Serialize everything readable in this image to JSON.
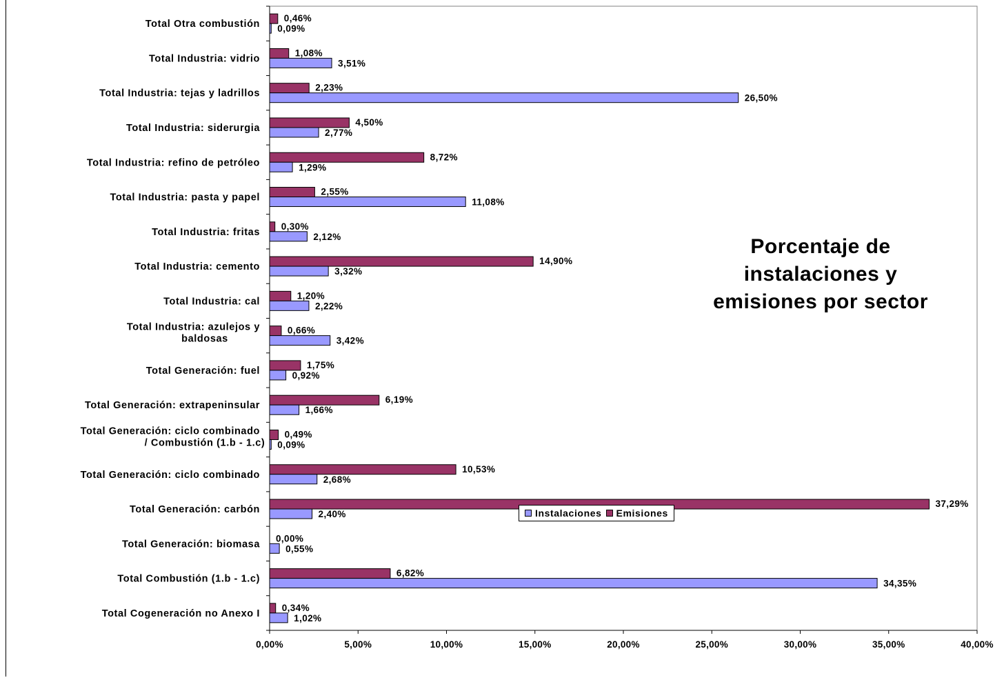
{
  "chart_data": {
    "type": "bar",
    "orientation": "horizontal",
    "title": "Porcentaje de instalaciones y emisiones por sector",
    "categories": [
      "Total Otra combustión",
      "Total Industria: vidrio",
      "Total Industria: tejas y ladrillos",
      "Total Industria: siderurgia",
      "Total Industria: refino de petróleo",
      "Total Industria: pasta y papel",
      "Total Industria: fritas",
      "Total Industria: cemento",
      "Total Industria: cal",
      "Total Industria: azulejos y baldosas",
      "Total Generación: fuel",
      "Total Generación: extrapeninsular",
      "Total Generación: ciclo combinado / Combustión (1.b - 1.c)",
      "Total Generación: ciclo combinado",
      "Total Generación: carbón",
      "Total Generación: biomasa",
      "Total Combustión (1.b - 1.c)",
      "Total Cogeneración no Anexo I"
    ],
    "series": [
      {
        "name": "Emisiones",
        "color": "#993366",
        "values": [
          0.46,
          1.08,
          2.23,
          4.5,
          8.72,
          2.55,
          0.3,
          14.9,
          1.2,
          0.66,
          1.75,
          6.19,
          0.49,
          10.53,
          37.29,
          0.0,
          6.82,
          0.34
        ],
        "labels": [
          "0,46%",
          "1,08%",
          "2,23%",
          "4,50%",
          "8,72%",
          "2,55%",
          "0,30%",
          "14,90%",
          "1,20%",
          "0,66%",
          "1,75%",
          "6,19%",
          "0,49%",
          "10,53%",
          "37,29%",
          "0,00%",
          "6,82%",
          "0,34%"
        ]
      },
      {
        "name": "Instalaciones",
        "color": "#9999ff",
        "values": [
          0.09,
          3.51,
          26.5,
          2.77,
          1.29,
          11.08,
          2.12,
          3.32,
          2.22,
          3.42,
          0.92,
          1.66,
          0.09,
          2.68,
          2.4,
          0.55,
          34.35,
          1.02
        ],
        "labels": [
          "0,09%",
          "3,51%",
          "26,50%",
          "2,77%",
          "1,29%",
          "11,08%",
          "2,12%",
          "3,32%",
          "2,22%",
          "3,42%",
          "0,92%",
          "1,66%",
          "0,09%",
          "2,68%",
          "2,40%",
          "0,55%",
          "34,35%",
          "1,02%"
        ]
      }
    ],
    "xlim": [
      0,
      40
    ],
    "xticks": [
      "0,00%",
      "5,00%",
      "10,00%",
      "15,00%",
      "20,00%",
      "25,00%",
      "30,00%",
      "35,00%",
      "40,00%"
    ],
    "xlabel": "",
    "ylabel": "",
    "grid": false,
    "legend_position": "bottom"
  },
  "legend": {
    "items": [
      {
        "label": "Instalaciones",
        "color": "#9999ff"
      },
      {
        "label": "Emisiones",
        "color": "#993366"
      }
    ]
  },
  "title_lines": [
    "Porcentaje de",
    "instalaciones y",
    "emisiones por sector"
  ]
}
